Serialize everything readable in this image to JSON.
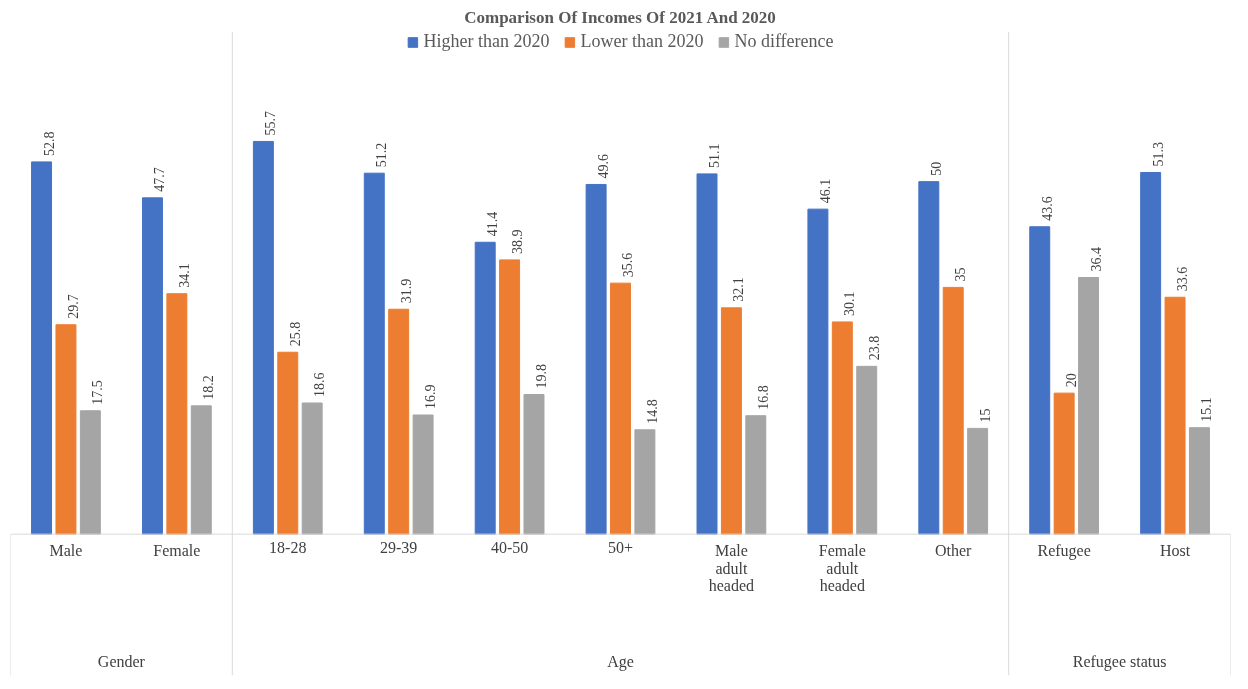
{
  "chart_data": {
    "type": "bar",
    "title": "Comparison Of Incomes Of 2021 And 2020",
    "categories": [
      "Male",
      "Female",
      "18-28",
      "29-39",
      "40-50",
      "50+",
      "Male\nadult\nheaded",
      "Female\nadult\nheaded",
      "Other",
      "Refugee",
      "Host"
    ],
    "series": [
      {
        "name": "Higher than 2020",
        "color": "#4472c4",
        "values": [
          52.8,
          47.7,
          55.7,
          51.2,
          41.4,
          49.6,
          51.1,
          46.1,
          50,
          43.6,
          51.3
        ]
      },
      {
        "name": "Lower than 2020",
        "color": "#ed7d31",
        "values": [
          29.7,
          34.1,
          25.8,
          31.9,
          38.9,
          35.6,
          32.1,
          30.1,
          35,
          20,
          33.6
        ]
      },
      {
        "name": "No difference",
        "color": "#a5a5a5",
        "values": [
          17.5,
          18.2,
          18.6,
          16.9,
          19.8,
          14.8,
          16.8,
          23.8,
          15,
          36.4,
          15.1
        ]
      }
    ],
    "annotations": [
      "Gender",
      "Age",
      "Refugee status"
    ],
    "data_labels": true,
    "legend": "top",
    "grid": false
  }
}
